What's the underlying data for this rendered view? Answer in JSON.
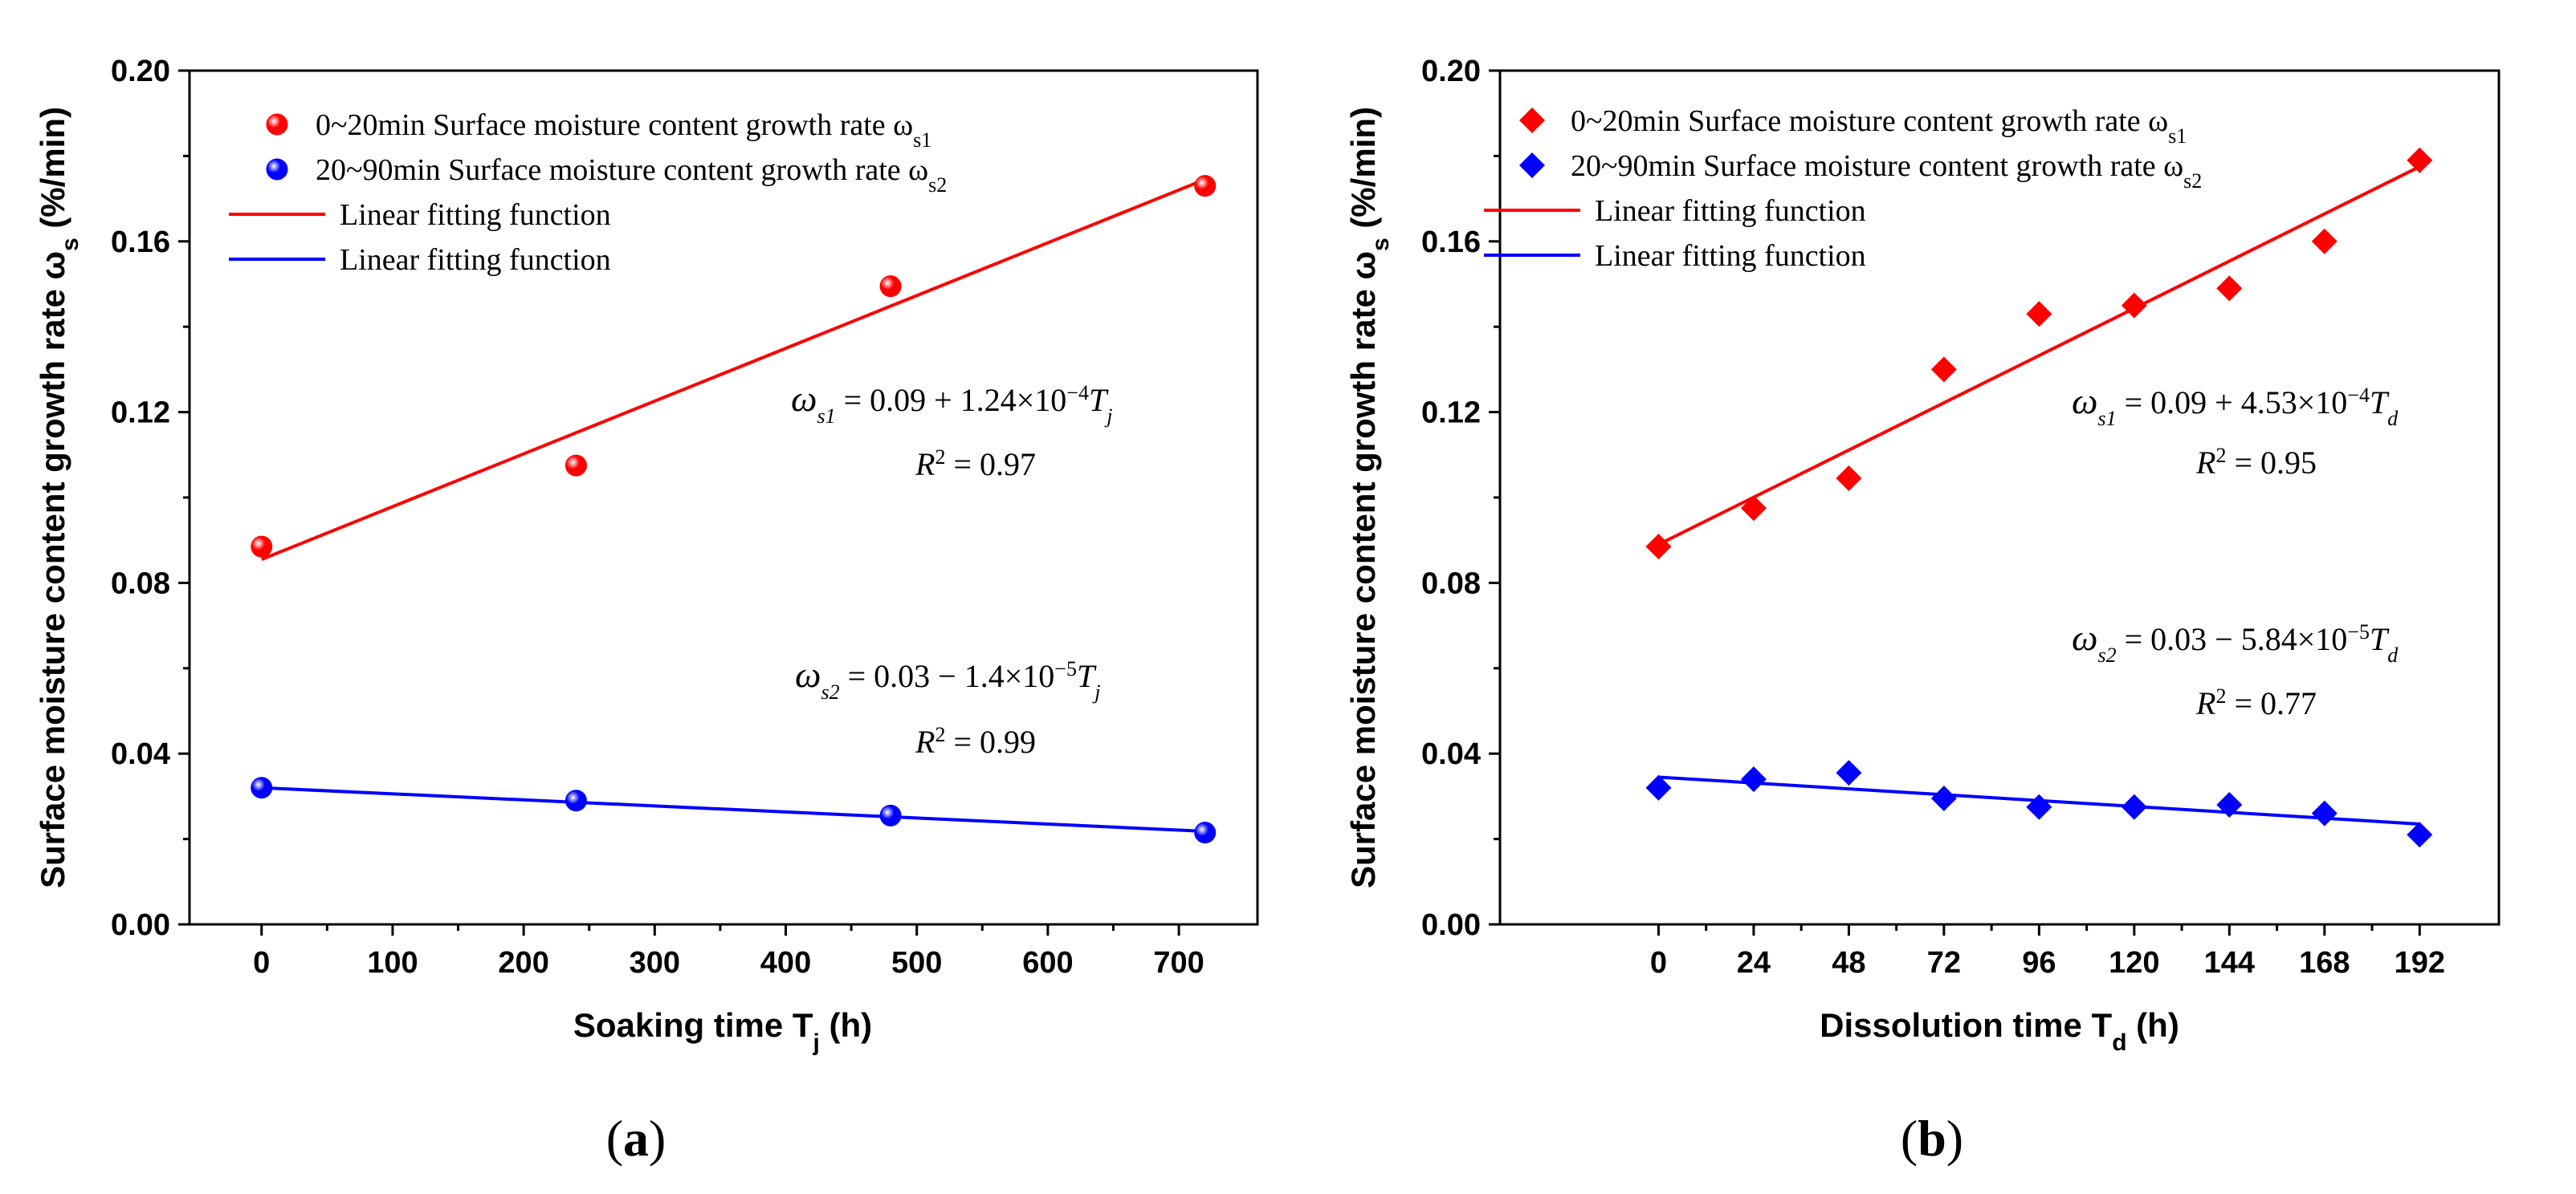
{
  "colors": {
    "series1": "#ff0000",
    "series2": "#0000ff",
    "axis": "#000000"
  },
  "chart_data": [
    {
      "type": "scatter",
      "panel_label_open": "(",
      "panel_label_letter": "a",
      "panel_label_close": ")",
      "xlabel_main": "Soaking time T",
      "xlabel_sub": "j",
      "xlabel_unit": " (h)",
      "ylabel_main": "Surface moisture content growth rate  ω",
      "ylabel_sub": "s",
      "ylabel_unit": " (%/min)",
      "xlim": [
        -55,
        760
      ],
      "ylim": [
        0,
        0.2
      ],
      "xticks": [
        0,
        100,
        200,
        300,
        400,
        500,
        600,
        700
      ],
      "xtick_labels": [
        "0",
        "100",
        "200",
        "300",
        "400",
        "500",
        "600",
        "700"
      ],
      "yticks": [
        0,
        0.04,
        0.08,
        0.12,
        0.16,
        0.2
      ],
      "ytick_labels": [
        "0.00",
        "0.04",
        "0.08",
        "0.12",
        "0.16",
        "0.20"
      ],
      "marker": "circle",
      "legend_position": "top-left",
      "legend": [
        {
          "kind": "marker",
          "color_key": "series1",
          "text": "0~20min Surface moisture content growth rate ω",
          "sub": "s1"
        },
        {
          "kind": "marker",
          "color_key": "series2",
          "text": "20~90min Surface moisture content growth rate ω",
          "sub": "s2"
        },
        {
          "kind": "line",
          "color_key": "series1",
          "text": "Linear fitting function",
          "sub": ""
        },
        {
          "kind": "line",
          "color_key": "series2",
          "text": "Linear fitting function",
          "sub": ""
        }
      ],
      "series": [
        {
          "name": "ωs1 (0~20min)",
          "color_key": "series1",
          "x": [
            0,
            240,
            480,
            720
          ],
          "y": [
            0.0885,
            0.1075,
            0.1495,
            0.173
          ],
          "fit": {
            "x": [
              0,
              720
            ],
            "y": [
              0.0855,
              0.1745
            ]
          }
        },
        {
          "name": "ωs2 (20~90min)",
          "color_key": "series2",
          "x": [
            0,
            240,
            480,
            720
          ],
          "y": [
            0.032,
            0.029,
            0.0255,
            0.0215
          ],
          "fit": {
            "x": [
              0,
              720
            ],
            "y": [
              0.032,
              0.0218
            ]
          }
        }
      ],
      "equations": [
        {
          "lhs_var": "ω",
          "lhs_sub": "s1",
          "mid": " = 0.09 + 1.24×10",
          "exp": "−4",
          "var": "T",
          "var_sub": "j",
          "r2_label": "R",
          "r2_exp": "2",
          "r2_val": " = 0.97"
        },
        {
          "lhs_var": "ω",
          "lhs_sub": "s2",
          "mid": " = 0.03 − 1.4×10",
          "exp": "−5",
          "var": "T",
          "var_sub": "j",
          "r2_label": "R",
          "r2_exp": "2",
          "r2_val": " = 0.99"
        }
      ]
    },
    {
      "type": "scatter",
      "panel_label_open": "(",
      "panel_label_letter": "b",
      "panel_label_close": ")",
      "xlabel_main": "Dissolution time  T",
      "xlabel_sub": "d",
      "xlabel_unit": " (h)",
      "ylabel_main": "Surface moisture content growth rate  ω",
      "ylabel_sub": "s",
      "ylabel_unit": " (%/min)",
      "xlim": [
        -40,
        212
      ],
      "ylim": [
        0,
        0.2
      ],
      "xticks": [
        0,
        24,
        48,
        72,
        96,
        120,
        144,
        168,
        192
      ],
      "xtick_labels": [
        "0",
        "24",
        "48",
        "72",
        "96",
        "120",
        "144",
        "168",
        "192"
      ],
      "yticks": [
        0,
        0.04,
        0.08,
        0.12,
        0.16,
        0.2
      ],
      "ytick_labels": [
        "0.00",
        "0.04",
        "0.08",
        "0.12",
        "0.16",
        "0.20"
      ],
      "marker": "diamond",
      "legend_position": "top-left",
      "legend": [
        {
          "kind": "marker",
          "color_key": "series1",
          "text": "0~20min Surface moisture content growth rate ω",
          "sub": "s1"
        },
        {
          "kind": "marker",
          "color_key": "series2",
          "text": "20~90min Surface moisture content growth rate ω",
          "sub": "s2"
        },
        {
          "kind": "line",
          "color_key": "series1",
          "text": "Linear fitting function",
          "sub": ""
        },
        {
          "kind": "line",
          "color_key": "series2",
          "text": "Linear fitting function",
          "sub": ""
        }
      ],
      "series": [
        {
          "name": "ωs1 (0~20min)",
          "color_key": "series1",
          "x": [
            0,
            24,
            48,
            72,
            96,
            120,
            144,
            168,
            192
          ],
          "y": [
            0.0885,
            0.0975,
            0.1045,
            0.13,
            0.143,
            0.145,
            0.149,
            0.16,
            0.179
          ],
          "fit": {
            "x": [
              0,
              192
            ],
            "y": [
              0.089,
              0.1775
            ]
          }
        },
        {
          "name": "ωs2 (20~90min)",
          "color_key": "series2",
          "x": [
            0,
            24,
            48,
            72,
            96,
            120,
            144,
            168,
            192
          ],
          "y": [
            0.032,
            0.034,
            0.0355,
            0.0295,
            0.0275,
            0.0275,
            0.028,
            0.026,
            0.021
          ],
          "fit": {
            "x": [
              0,
              192
            ],
            "y": [
              0.0345,
              0.0235
            ]
          }
        }
      ],
      "equations": [
        {
          "lhs_var": "ω",
          "lhs_sub": "s1",
          "mid": " = 0.09 + 4.53×10",
          "exp": "−4",
          "var": "T",
          "var_sub": "d",
          "r2_label": "R",
          "r2_exp": "2",
          "r2_val": " = 0.95"
        },
        {
          "lhs_var": "ω",
          "lhs_sub": "s2",
          "mid": " = 0.03 − 5.84×10",
          "exp": "−5",
          "var": "T",
          "var_sub": "d",
          "r2_label": "R",
          "r2_exp": "2",
          "r2_val": " = 0.77"
        }
      ]
    }
  ]
}
